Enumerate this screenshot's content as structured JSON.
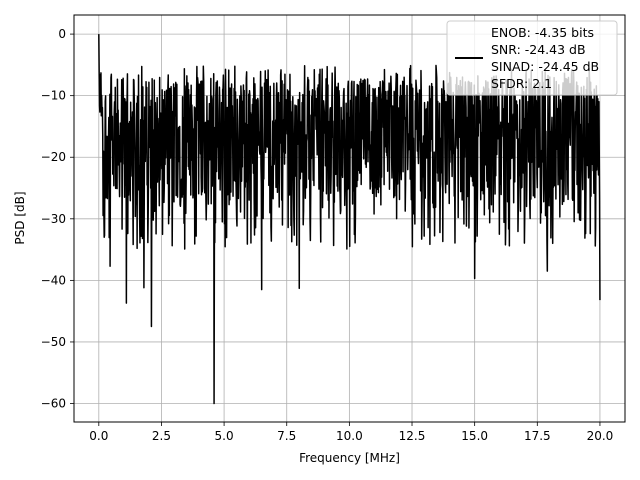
{
  "chart_data": {
    "type": "line",
    "title": "",
    "xlabel": "Frequency [MHz]",
    "ylabel": "PSD [dB]",
    "xlim": [
      -0.99,
      21.0
    ],
    "ylim": [
      -63.0,
      3.1
    ],
    "xticks": [
      0.0,
      2.5,
      5.0,
      7.5,
      10.0,
      12.5,
      15.0,
      17.5,
      20.0
    ],
    "xtick_labels": [
      "0.0",
      "2.5",
      "5.0",
      "7.5",
      "10.0",
      "12.5",
      "15.0",
      "17.5",
      "20.0"
    ],
    "yticks": [
      0,
      -10,
      -20,
      -30,
      -40,
      -50,
      -60
    ],
    "ytick_labels": [
      "0",
      "−10",
      "−20",
      "−30",
      "−40",
      "−50",
      "−60"
    ],
    "grid": true,
    "legend_position": "top-right",
    "series": [
      {
        "name": "",
        "color": "#000000",
        "x_start": 0.0,
        "x_end": 20.0,
        "envelope_max_dB": -5,
        "envelope_min_dB": -35,
        "notable_points": [
          {
            "x": 0.0,
            "y": 0.0
          },
          {
            "x": 0.2,
            "y": -28.0
          },
          {
            "x": 0.45,
            "y": -37.7
          },
          {
            "x": 1.1,
            "y": -43.7
          },
          {
            "x": 1.8,
            "y": -41.2
          },
          {
            "x": 2.1,
            "y": -47.5
          },
          {
            "x": 4.6,
            "y": -60.0
          },
          {
            "x": 6.5,
            "y": -41.5
          },
          {
            "x": 8.0,
            "y": -41.3
          },
          {
            "x": 15.0,
            "y": -39.7
          },
          {
            "x": 17.9,
            "y": -38.5
          },
          {
            "x": 20.0,
            "y": -43.2
          }
        ]
      }
    ],
    "legend_entries": [
      "ENOB: -4.35 bits",
      "SNR: -24.43 dB",
      "SINAD: -24.45 dB",
      "SFDR: 2.1"
    ]
  }
}
